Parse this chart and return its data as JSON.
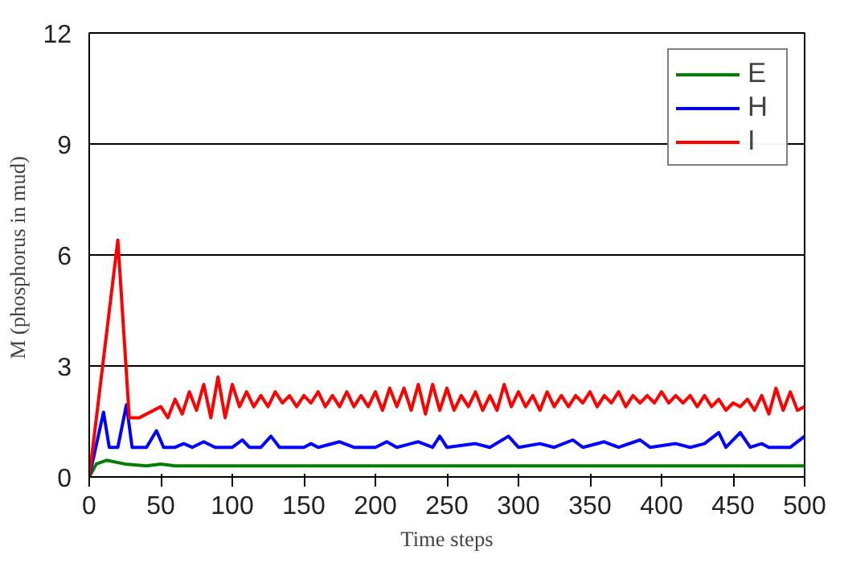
{
  "chart_data": {
    "type": "line",
    "xlabel": "Time steps",
    "ylabel": "M  (phosphorus in mud)",
    "xlim": [
      0,
      500
    ],
    "xticks": [
      0,
      50,
      100,
      150,
      200,
      250,
      300,
      350,
      400,
      450,
      500
    ],
    "ylim": [
      0,
      12
    ],
    "yticks": [
      0,
      3,
      6,
      9,
      12
    ],
    "grid": "y",
    "legend": "top right",
    "line_style": "solid",
    "marker": "none",
    "series": [
      {
        "name": "E",
        "color": "#007f00",
        "x": [
          0,
          5,
          12,
          25,
          40,
          50,
          60,
          100,
          150,
          200,
          250,
          300,
          350,
          400,
          450,
          500
        ],
        "values": [
          0,
          0.35,
          0.45,
          0.35,
          0.3,
          0.35,
          0.3,
          0.3,
          0.3,
          0.3,
          0.3,
          0.3,
          0.3,
          0.3,
          0.3,
          0.3
        ]
      },
      {
        "name": "H",
        "color": "#0000ff",
        "x": [
          0,
          10,
          14,
          20,
          26,
          30,
          40,
          47,
          52,
          60,
          66,
          72,
          80,
          88,
          100,
          107,
          112,
          120,
          127,
          133,
          150,
          155,
          160,
          175,
          185,
          200,
          208,
          215,
          230,
          240,
          245,
          250,
          270,
          280,
          293,
          300,
          315,
          325,
          338,
          345,
          360,
          370,
          385,
          392,
          410,
          420,
          430,
          440,
          445,
          455,
          462,
          470,
          475,
          490,
          500
        ],
        "values": [
          0,
          1.75,
          0.8,
          0.8,
          1.95,
          0.8,
          0.8,
          1.25,
          0.8,
          0.8,
          0.9,
          0.8,
          0.95,
          0.8,
          0.8,
          1.0,
          0.8,
          0.8,
          1.1,
          0.8,
          0.8,
          0.9,
          0.8,
          0.95,
          0.8,
          0.8,
          0.95,
          0.8,
          0.95,
          0.8,
          1.1,
          0.8,
          0.9,
          0.8,
          1.1,
          0.8,
          0.9,
          0.8,
          1.0,
          0.8,
          0.95,
          0.8,
          1.0,
          0.8,
          0.9,
          0.8,
          0.9,
          1.2,
          0.8,
          1.2,
          0.8,
          0.9,
          0.8,
          0.8,
          1.1
        ]
      },
      {
        "name": "I",
        "color": "#ff0000",
        "x": [
          0,
          20,
          28,
          35,
          45,
          50,
          55,
          60,
          65,
          70,
          75,
          80,
          85,
          90,
          95,
          100,
          105,
          110,
          115,
          120,
          125,
          130,
          135,
          140,
          145,
          150,
          155,
          160,
          165,
          170,
          175,
          180,
          185,
          190,
          195,
          200,
          205,
          210,
          215,
          220,
          225,
          230,
          235,
          240,
          245,
          250,
          255,
          260,
          265,
          270,
          275,
          280,
          285,
          290,
          295,
          300,
          305,
          310,
          315,
          320,
          325,
          330,
          335,
          340,
          345,
          350,
          355,
          360,
          365,
          370,
          375,
          380,
          385,
          390,
          395,
          400,
          405,
          410,
          415,
          420,
          425,
          430,
          435,
          440,
          445,
          450,
          455,
          460,
          465,
          470,
          475,
          480,
          485,
          490,
          495,
          500
        ],
        "values": [
          0,
          6.4,
          1.6,
          1.6,
          1.8,
          1.9,
          1.6,
          2.1,
          1.7,
          2.3,
          1.8,
          2.5,
          1.6,
          2.7,
          1.6,
          2.5,
          1.9,
          2.3,
          1.9,
          2.2,
          1.9,
          2.3,
          2.0,
          2.2,
          1.9,
          2.2,
          2.0,
          2.3,
          1.9,
          2.2,
          1.9,
          2.3,
          1.9,
          2.2,
          1.9,
          2.3,
          1.8,
          2.4,
          1.9,
          2.4,
          1.8,
          2.5,
          1.7,
          2.5,
          1.8,
          2.4,
          1.8,
          2.2,
          1.9,
          2.3,
          1.8,
          2.2,
          1.8,
          2.5,
          1.9,
          2.3,
          1.9,
          2.2,
          1.8,
          2.3,
          1.9,
          2.2,
          1.9,
          2.2,
          2.0,
          2.3,
          1.9,
          2.2,
          2.0,
          2.3,
          1.9,
          2.2,
          2.0,
          2.2,
          2.0,
          2.3,
          2.0,
          2.2,
          2.0,
          2.2,
          1.9,
          2.2,
          1.9,
          2.1,
          1.8,
          2.0,
          1.9,
          2.1,
          1.8,
          2.2,
          1.7,
          2.4,
          1.8,
          2.3,
          1.8,
          1.9
        ]
      }
    ]
  }
}
